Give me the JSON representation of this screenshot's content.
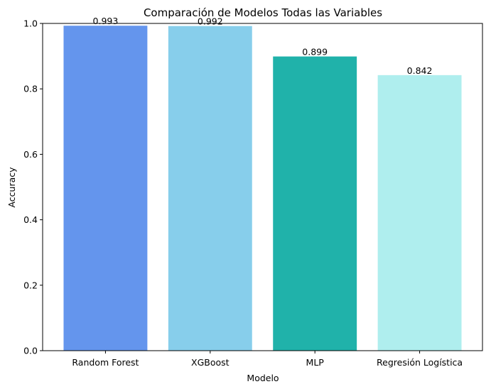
{
  "chart_data": {
    "type": "bar",
    "title": "Comparación de Modelos Todas las Variables",
    "xlabel": "Modelo",
    "ylabel": "Accuracy",
    "categories": [
      "Random Forest",
      "XGBoost",
      "MLP",
      "Regresión Logística"
    ],
    "values": [
      0.993,
      0.992,
      0.899,
      0.842
    ],
    "value_labels": [
      "0.993",
      "0.992",
      "0.899",
      "0.842"
    ],
    "colors": [
      "#6495ED",
      "#87CEEB",
      "#20B2AA",
      "#AFEEEE"
    ],
    "ylim": [
      0,
      1.0
    ],
    "yticks": [
      0.0,
      0.2,
      0.4,
      0.6,
      0.8,
      1.0
    ],
    "ytick_labels": [
      "0.0",
      "0.2",
      "0.4",
      "0.6",
      "0.8",
      "1.0"
    ],
    "grid": false,
    "legend": "none"
  }
}
